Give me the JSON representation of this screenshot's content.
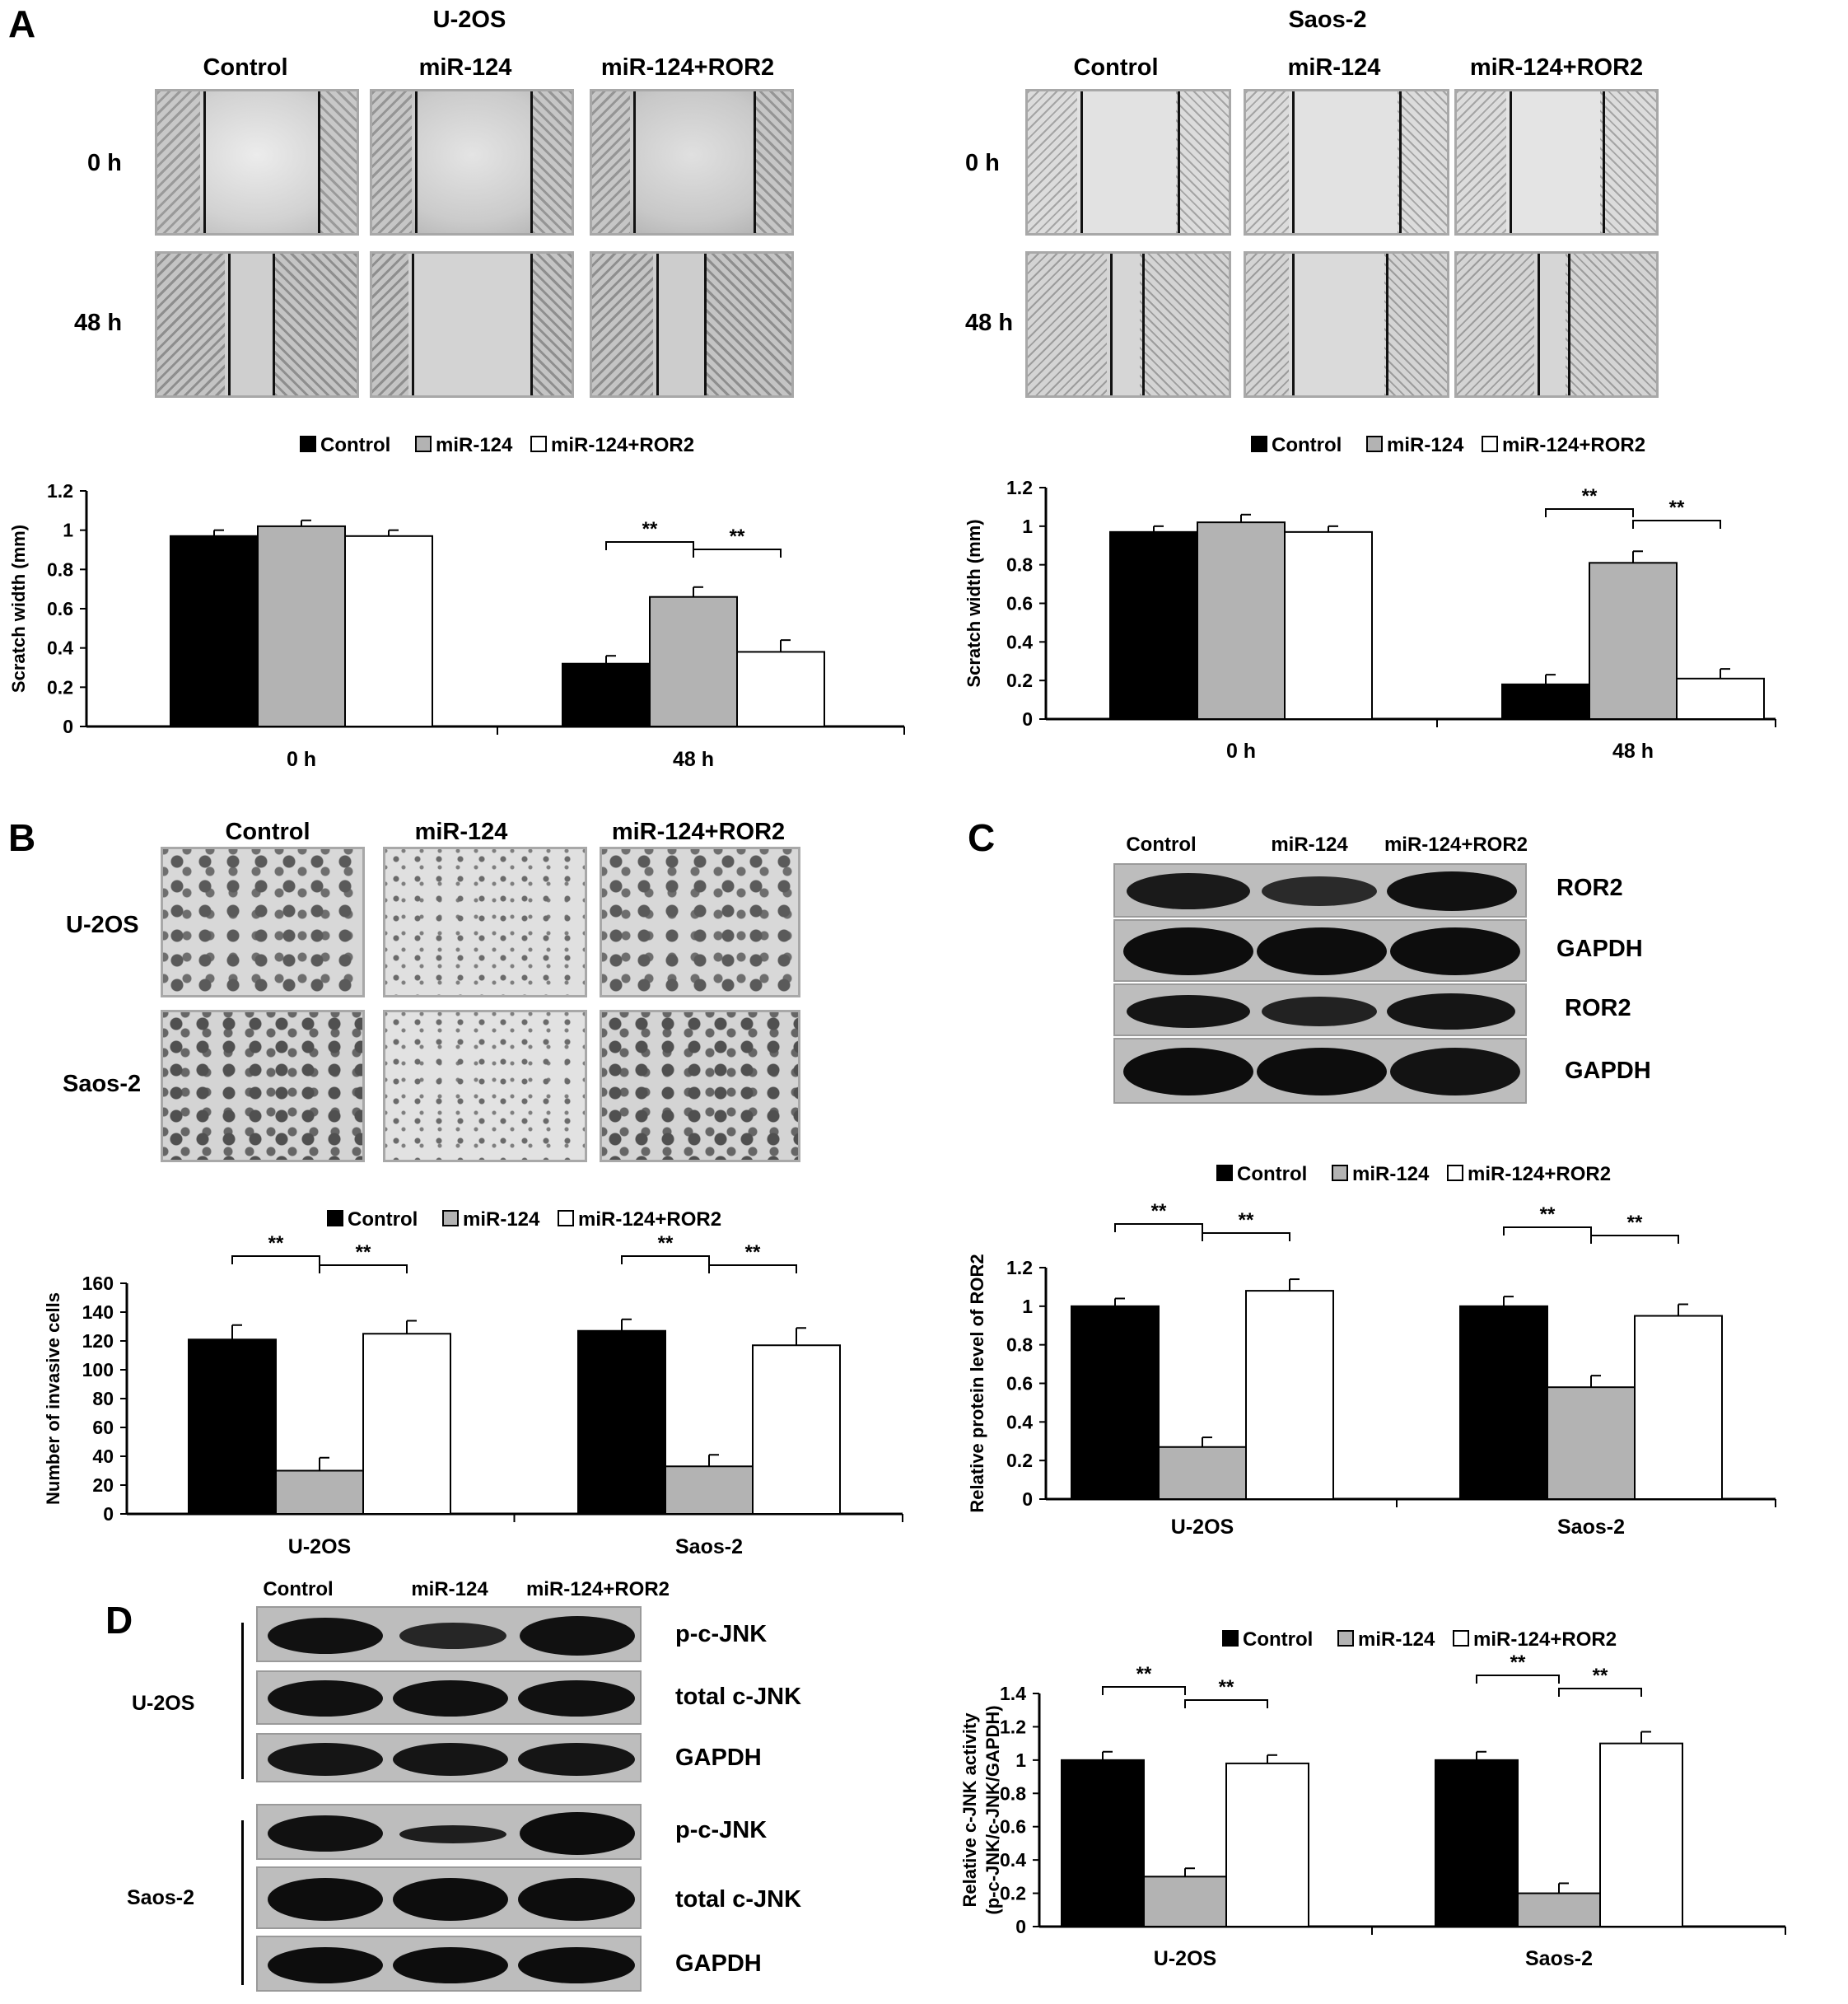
{
  "panel_A": {
    "label": "A",
    "u2os": {
      "title": "U-2OS",
      "columns": [
        "Control",
        "miR-124",
        "miR-124+ROR2"
      ],
      "rows": [
        "0 h",
        "48 h"
      ]
    },
    "saos2": {
      "title": "Saos-2",
      "columns": [
        "Control",
        "miR-124",
        "miR-124+ROR2"
      ],
      "rows": [
        "0 h",
        "48 h"
      ]
    }
  },
  "panel_B": {
    "label": "B",
    "columns": [
      "Control",
      "miR-124",
      "miR-124+ROR2"
    ],
    "rows": [
      "U-2OS",
      "Saos-2"
    ]
  },
  "panel_C": {
    "label": "C",
    "columns": [
      "Control",
      "miR-124",
      "miR-124+ROR2"
    ],
    "bands": [
      "ROR2",
      "GAPDH",
      "ROR2",
      "GAPDH"
    ]
  },
  "panel_D": {
    "label": "D",
    "columns": [
      "Control",
      "miR-124",
      "miR-124+ROR2"
    ],
    "groups": [
      "U-2OS",
      "Saos-2"
    ],
    "bands": [
      "p-c-JNK",
      "total c-JNK",
      "GAPDH",
      "p-c-JNK",
      "total c-JNK",
      "GAPDH"
    ]
  },
  "colors": {
    "control": "#000000",
    "mir124": "#b3b3b3",
    "mir124_ror2": "#ffffff"
  },
  "chart_data": [
    {
      "id": "A-U2OS",
      "type": "bar",
      "categories": [
        "0  h",
        "48  h"
      ],
      "series": [
        {
          "name": "Control",
          "values": [
            0.97,
            0.32
          ],
          "errors": [
            0.03,
            0.04
          ]
        },
        {
          "name": "miR-124",
          "values": [
            1.02,
            0.66
          ],
          "errors": [
            0.03,
            0.05
          ]
        },
        {
          "name": "miR-124+ROR2",
          "values": [
            0.97,
            0.38
          ],
          "errors": [
            0.03,
            0.06
          ]
        }
      ],
      "ylabel": "Scratch width (mm)",
      "ylim": [
        0,
        1.2
      ],
      "yticks": [
        "0",
        "0.2",
        "0.4",
        "0.6",
        "0.8",
        "1",
        "1.2"
      ],
      "significance": [
        {
          "label": "**",
          "group": 1,
          "from": 0,
          "to": 1
        },
        {
          "label": "**",
          "group": 1,
          "from": 1,
          "to": 2
        }
      ],
      "legend": "top"
    },
    {
      "id": "A-Saos2",
      "type": "bar",
      "categories": [
        "0  h",
        "48  h"
      ],
      "series": [
        {
          "name": "Control",
          "values": [
            0.97,
            0.18
          ],
          "errors": [
            0.03,
            0.05
          ]
        },
        {
          "name": "miR-124",
          "values": [
            1.02,
            0.81
          ],
          "errors": [
            0.04,
            0.06
          ]
        },
        {
          "name": "miR-124+ROR2",
          "values": [
            0.97,
            0.21
          ],
          "errors": [
            0.03,
            0.05
          ]
        }
      ],
      "ylabel": "Scratch width (mm)",
      "ylim": [
        0,
        1.2
      ],
      "yticks": [
        "0",
        "0.2",
        "0.4",
        "0.6",
        "0.8",
        "1",
        "1.2"
      ],
      "significance": [
        {
          "label": "**",
          "group": 1,
          "from": 0,
          "to": 1
        },
        {
          "label": "**",
          "group": 1,
          "from": 1,
          "to": 2
        }
      ],
      "legend": "top"
    },
    {
      "id": "B",
      "type": "bar",
      "categories": [
        "U-2OS",
        "Saos-2"
      ],
      "series": [
        {
          "name": "Control",
          "values": [
            121,
            127
          ],
          "errors": [
            10,
            8
          ]
        },
        {
          "name": "miR-124",
          "values": [
            30,
            33
          ],
          "errors": [
            9,
            8
          ]
        },
        {
          "name": "miR-124+ROR2",
          "values": [
            125,
            117
          ],
          "errors": [
            9,
            12
          ]
        }
      ],
      "ylabel": "Number of invasive cells",
      "ylim": [
        0,
        160
      ],
      "yticks": [
        "0",
        "20",
        "40",
        "60",
        "80",
        "100",
        "120",
        "140",
        "160"
      ],
      "significance": [
        {
          "label": "**",
          "group": 0,
          "from": 0,
          "to": 1
        },
        {
          "label": "**",
          "group": 0,
          "from": 1,
          "to": 2
        },
        {
          "label": "**",
          "group": 1,
          "from": 0,
          "to": 1
        },
        {
          "label": "**",
          "group": 1,
          "from": 1,
          "to": 2
        }
      ],
      "legend": "top"
    },
    {
      "id": "C",
      "type": "bar",
      "categories": [
        "U-2OS",
        "Saos-2"
      ],
      "series": [
        {
          "name": "Control",
          "values": [
            1.0,
            1.0
          ],
          "errors": [
            0.04,
            0.05
          ]
        },
        {
          "name": "miR-124",
          "values": [
            0.27,
            0.58
          ],
          "errors": [
            0.05,
            0.06
          ]
        },
        {
          "name": "miR-124+ROR2",
          "values": [
            1.08,
            0.95
          ],
          "errors": [
            0.06,
            0.06
          ]
        }
      ],
      "ylabel": "Relative protein level of ROR2",
      "ylim": [
        0,
        1.2
      ],
      "yticks": [
        "0",
        "0.2",
        "0.4",
        "0.6",
        "0.8",
        "1",
        "1.2"
      ],
      "significance": [
        {
          "label": "**",
          "group": 0,
          "from": 0,
          "to": 1
        },
        {
          "label": "**",
          "group": 0,
          "from": 1,
          "to": 2
        },
        {
          "label": "**",
          "group": 1,
          "from": 0,
          "to": 1
        },
        {
          "label": "**",
          "group": 1,
          "from": 1,
          "to": 2
        }
      ],
      "legend": "top"
    },
    {
      "id": "D",
      "type": "bar",
      "categories": [
        "U-2OS",
        "Saos-2"
      ],
      "series": [
        {
          "name": "Control",
          "values": [
            1.0,
            1.0
          ],
          "errors": [
            0.05,
            0.05
          ]
        },
        {
          "name": "miR-124",
          "values": [
            0.3,
            0.2
          ],
          "errors": [
            0.05,
            0.06
          ]
        },
        {
          "name": "miR-124+ROR2",
          "values": [
            0.98,
            1.1
          ],
          "errors": [
            0.05,
            0.07
          ]
        }
      ],
      "ylabel": [
        "Relative c-JNK activity",
        "(p-c-JNK/c-JNK/GAPDH)"
      ],
      "ylim": [
        0,
        1.4
      ],
      "yticks": [
        "0",
        "0.2",
        "0.4",
        "0.6",
        "0.8",
        "1",
        "1.2",
        "1.4"
      ],
      "significance": [
        {
          "label": "**",
          "group": 0,
          "from": 0,
          "to": 1
        },
        {
          "label": "**",
          "group": 0,
          "from": 1,
          "to": 2
        },
        {
          "label": "**",
          "group": 1,
          "from": 0,
          "to": 1
        },
        {
          "label": "**",
          "group": 1,
          "from": 1,
          "to": 2
        }
      ],
      "legend": "top"
    }
  ]
}
